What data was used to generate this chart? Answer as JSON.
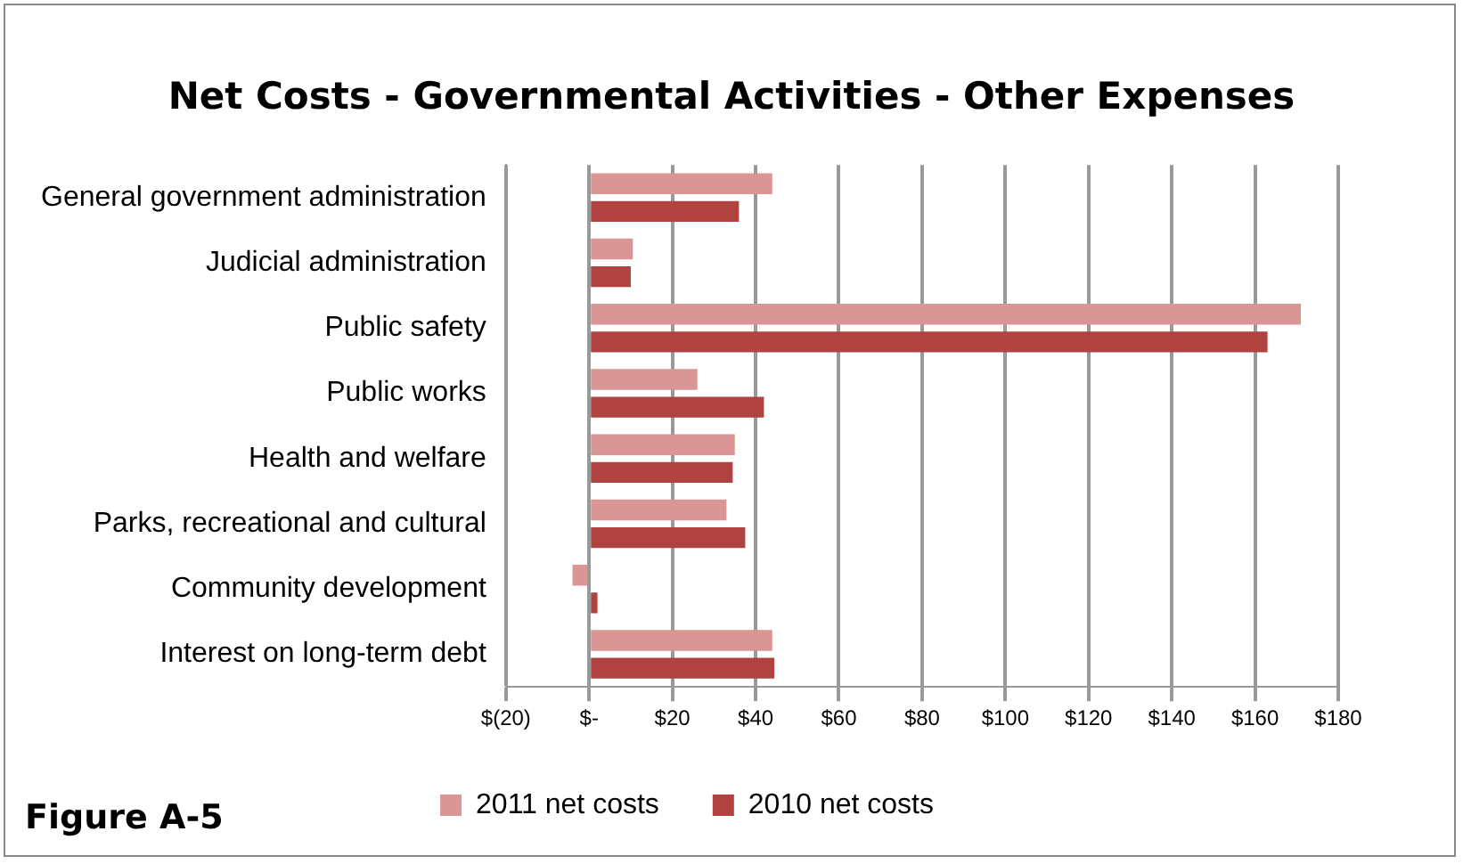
{
  "chart_data": {
    "type": "bar",
    "orientation": "horizontal",
    "title": "Net Costs - Governmental Activities - Other Expenses",
    "categories": [
      "General government administration",
      "Judicial administration",
      "Public safety",
      "Public works",
      "Health and welfare",
      "Parks, recreational and cultural",
      "Community development",
      "Interest on long-term debt"
    ],
    "series": [
      {
        "name": "2011 net costs",
        "color": "#d99694",
        "values": [
          44,
          10.5,
          171,
          26,
          35,
          33,
          -4,
          44
        ]
      },
      {
        "name": "2010 net costs",
        "color": "#b0423f",
        "values": [
          36,
          10,
          163,
          42,
          34.5,
          37.5,
          2,
          44.5
        ]
      }
    ],
    "xlim": [
      -20,
      180
    ],
    "xticks": [
      {
        "value": -20,
        "label": "$(20)"
      },
      {
        "value": 0,
        "label": "$-"
      },
      {
        "value": 20,
        "label": "$20"
      },
      {
        "value": 40,
        "label": "$40"
      },
      {
        "value": 60,
        "label": "$60"
      },
      {
        "value": 80,
        "label": "$80"
      },
      {
        "value": 100,
        "label": "$100"
      },
      {
        "value": 120,
        "label": "$120"
      },
      {
        "value": 140,
        "label": "$140"
      },
      {
        "value": 160,
        "label": "$160"
      },
      {
        "value": 180,
        "label": "$180"
      }
    ],
    "grid": "x",
    "legend": "bottom",
    "annotations": [
      "Figure A-5"
    ]
  }
}
